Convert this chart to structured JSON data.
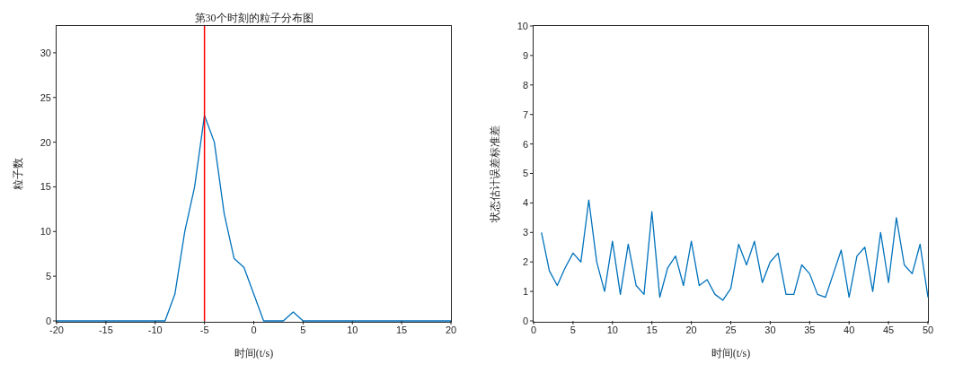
{
  "chart_data": [
    {
      "type": "line",
      "title": "第30个时刻的粒子分布图",
      "xlabel": "时间(t/s)",
      "ylabel": "粒子数",
      "x": [
        -20,
        -19,
        -18,
        -17,
        -16,
        -15,
        -14,
        -13,
        -12,
        -11,
        -10,
        -9,
        -8,
        -7,
        -6,
        -5,
        -4,
        -3,
        -2,
        -1,
        0,
        1,
        2,
        3,
        4,
        5,
        6,
        7,
        8,
        9,
        10,
        11,
        12,
        13,
        14,
        15,
        16,
        17,
        18,
        19,
        20
      ],
      "series": [
        {
          "color": "#0072bd",
          "values": [
            0,
            0,
            0,
            0,
            0,
            0,
            0,
            0,
            0,
            0,
            0,
            0,
            3,
            10,
            15,
            23,
            20,
            12,
            7,
            6,
            3,
            0,
            0,
            0,
            1,
            0,
            0,
            0,
            0,
            0,
            0,
            0,
            0,
            0,
            0,
            0,
            0,
            0,
            0,
            0,
            0
          ]
        }
      ],
      "xlim": [
        -20,
        20
      ],
      "xticks": [
        -20,
        -15,
        -10,
        -5,
        0,
        5,
        10,
        15,
        20
      ],
      "ylim": [
        0,
        33
      ],
      "yticks": [
        0,
        5,
        10,
        15,
        20,
        25,
        30
      ],
      "ref_lines": [
        {
          "axis": "x",
          "value": -5,
          "color": "#ff0000"
        }
      ],
      "grid": false,
      "legend": false
    },
    {
      "type": "line",
      "xlabel": "时间(t/s)",
      "ylabel": "状态估计误差标准差",
      "x": [
        1,
        2,
        3,
        4,
        5,
        6,
        7,
        8,
        9,
        10,
        11,
        12,
        13,
        14,
        15,
        16,
        17,
        18,
        19,
        20,
        21,
        22,
        23,
        24,
        25,
        26,
        27,
        28,
        29,
        30,
        31,
        32,
        33,
        34,
        35,
        36,
        37,
        38,
        39,
        40,
        41,
        42,
        43,
        44,
        45,
        46,
        47,
        48,
        49,
        50
      ],
      "series": [
        {
          "color": "#0072bd",
          "values": [
            3.0,
            1.7,
            1.2,
            1.8,
            2.3,
            2.0,
            4.1,
            2.0,
            1.0,
            2.7,
            0.9,
            2.6,
            1.2,
            0.9,
            3.7,
            0.8,
            1.8,
            2.2,
            1.2,
            2.7,
            1.2,
            1.4,
            0.9,
            0.7,
            1.1,
            2.6,
            1.9,
            2.7,
            1.3,
            2.0,
            2.3,
            0.9,
            0.9,
            1.9,
            1.6,
            0.9,
            0.8,
            1.6,
            2.4,
            0.8,
            2.2,
            2.5,
            1.0,
            3.0,
            1.3,
            3.5,
            1.9,
            1.6,
            2.6,
            0.8
          ]
        }
      ],
      "xlim": [
        0,
        50
      ],
      "xticks": [
        0,
        5,
        10,
        15,
        20,
        25,
        30,
        35,
        40,
        45,
        50
      ],
      "ylim": [
        0,
        10
      ],
      "yticks": [
        0,
        1,
        2,
        3,
        4,
        5,
        6,
        7,
        8,
        9,
        10
      ],
      "grid": false,
      "legend": false
    }
  ]
}
